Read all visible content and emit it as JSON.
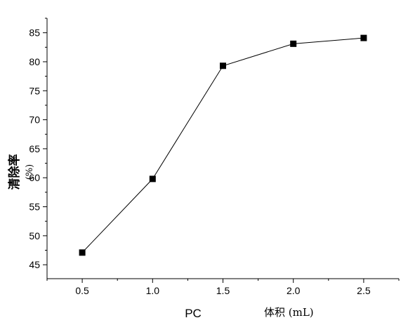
{
  "chart_data": {
    "type": "line",
    "x": [
      0.5,
      1.0,
      1.5,
      2.0,
      2.5
    ],
    "series": [
      {
        "values": [
          47.1,
          59.8,
          79.3,
          83.1,
          84.1
        ],
        "color": "#000000",
        "marker": "square"
      }
    ],
    "xticks": [
      "0.5",
      "1.0",
      "1.5",
      "2.0",
      "2.5"
    ],
    "yticks": [
      "45",
      "50",
      "55",
      "60",
      "65",
      "70",
      "75",
      "80",
      "85"
    ],
    "xlabel": "PC",
    "xlabel_unit": "体积 (mL)",
    "ylabel": "清除率",
    "ylabel_unit": "(%)",
    "xlim": [
      0.25,
      2.75
    ],
    "ylim": [
      42.6,
      87.5
    ],
    "grid": false,
    "legend": "none"
  }
}
